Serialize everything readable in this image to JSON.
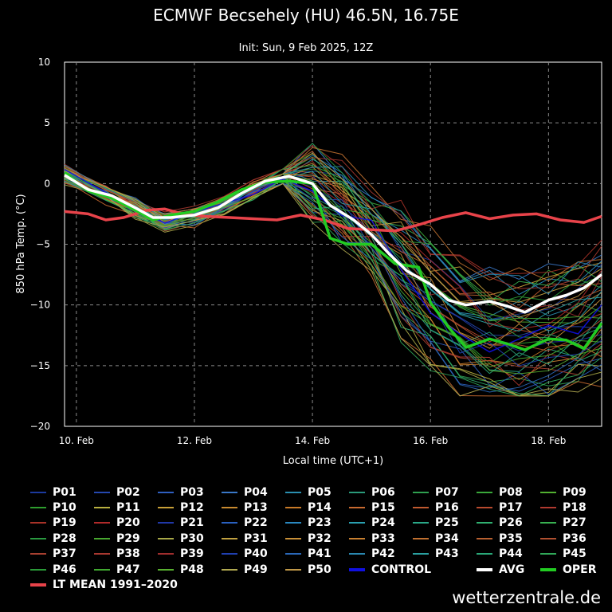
{
  "chart_data": {
    "type": "line",
    "title": "ECMWF Becsehely (HU) 46.5N, 16.75E",
    "subtitle": "Init: Sun, 9 Feb 2025, 12Z",
    "xlabel": "Local time (UTC+1)",
    "ylabel": "850 hPa Temp. (°C)",
    "xlim": [
      9.8,
      18.9
    ],
    "ylim": [
      -20,
      10
    ],
    "grid": true,
    "x_ticks": [
      10,
      12,
      14,
      16,
      18
    ],
    "x_tick_labels": [
      "10. Feb",
      "12. Feb",
      "14. Feb",
      "16. Feb",
      "18. Feb"
    ],
    "y_ticks": [
      -20,
      -15,
      -10,
      -5,
      0,
      5,
      10
    ],
    "y_tick_labels": [
      "−20",
      "−15",
      "−10",
      "−5",
      "0",
      "5",
      "10"
    ],
    "ensemble_x": [
      9.8,
      10.5,
      11.0,
      11.5,
      12.0,
      12.5,
      13.0,
      13.5,
      14.0,
      14.5,
      15.0,
      15.5,
      16.0,
      16.5,
      17.0,
      17.5,
      18.0,
      18.5,
      18.9
    ],
    "ensemble_base": [
      0.8,
      -0.8,
      -2.0,
      -3.2,
      -2.7,
      -1.8,
      -0.5,
      0.6,
      0.2,
      -1.5,
      -4.0,
      -7.0,
      -9.5,
      -11.5,
      -12.5,
      -12.8,
      -12.3,
      -11.5,
      -10.5
    ],
    "series": [
      {
        "name": "AVG",
        "color": "#ffffff",
        "x": [
          9.8,
          10.2,
          10.6,
          11.0,
          11.3,
          11.6,
          12.0,
          12.4,
          12.8,
          13.2,
          13.6,
          14.0,
          14.3,
          14.7,
          15.0,
          15.3,
          15.6,
          16.0,
          16.3,
          16.6,
          17.0,
          17.3,
          17.6,
          18.0,
          18.3,
          18.6,
          18.9
        ],
        "values": [
          0.7,
          -0.5,
          -1.0,
          -2.0,
          -2.8,
          -2.8,
          -2.6,
          -2.0,
          -0.8,
          0.2,
          0.6,
          0.0,
          -1.8,
          -3.0,
          -4.2,
          -5.8,
          -7.2,
          -8.3,
          -9.6,
          -10.0,
          -9.7,
          -10.1,
          -10.6,
          -9.6,
          -9.2,
          -8.6,
          -7.5
        ]
      },
      {
        "name": "OPER",
        "color": "#22cc22",
        "x": [
          9.8,
          10.2,
          10.6,
          11.0,
          11.3,
          11.6,
          12.0,
          12.4,
          12.8,
          13.2,
          13.6,
          14.0,
          14.3,
          14.6,
          15.0,
          15.4,
          15.8,
          16.0,
          16.3,
          16.6,
          17.0,
          17.3,
          17.6,
          18.0,
          18.3,
          18.6,
          18.9
        ],
        "values": [
          0.9,
          -0.6,
          -1.2,
          -2.2,
          -3.0,
          -2.6,
          -2.3,
          -1.5,
          -0.5,
          0.1,
          0.2,
          0.0,
          -4.5,
          -5.0,
          -5.0,
          -6.6,
          -6.9,
          -9.8,
          -11.8,
          -13.5,
          -12.8,
          -13.2,
          -13.7,
          -12.8,
          -12.9,
          -13.6,
          -11.5
        ]
      },
      {
        "name": "LT MEAN 1991-2020",
        "color": "#e8434a",
        "x": [
          9.8,
          10.2,
          10.5,
          10.8,
          11.2,
          11.5,
          11.8,
          12.2,
          12.6,
          13.0,
          13.4,
          13.8,
          14.2,
          14.6,
          15.0,
          15.4,
          15.8,
          16.2,
          16.6,
          17.0,
          17.4,
          17.8,
          18.2,
          18.6,
          18.9
        ],
        "values": [
          -2.3,
          -2.5,
          -3.0,
          -2.8,
          -2.2,
          -2.1,
          -2.5,
          -2.7,
          -2.8,
          -2.9,
          -3.0,
          -2.6,
          -3.0,
          -3.7,
          -3.8,
          -3.9,
          -3.4,
          -2.8,
          -2.4,
          -2.9,
          -2.6,
          -2.5,
          -3.0,
          -3.2,
          -2.7
        ]
      }
    ],
    "legend": [
      {
        "label": "P01",
        "color": "#1c3a9e"
      },
      {
        "label": "P02",
        "color": "#2548b0"
      },
      {
        "label": "P03",
        "color": "#2f5fc0"
      },
      {
        "label": "P04",
        "color": "#3a78c8"
      },
      {
        "label": "P05",
        "color": "#2a8fb0"
      },
      {
        "label": "P06",
        "color": "#2a9a7a"
      },
      {
        "label": "P07",
        "color": "#2fa050"
      },
      {
        "label": "P08",
        "color": "#3aa83a"
      },
      {
        "label": "P09",
        "color": "#52b030"
      },
      {
        "label": "P10",
        "color": "#2e9e2e"
      },
      {
        "label": "P11",
        "color": "#b8b040"
      },
      {
        "label": "P12",
        "color": "#c8a038"
      },
      {
        "label": "P13",
        "color": "#c88a30"
      },
      {
        "label": "P14",
        "color": "#c87a28"
      },
      {
        "label": "P15",
        "color": "#c86a30"
      },
      {
        "label": "P16",
        "color": "#c05a30"
      },
      {
        "label": "P17",
        "color": "#b84a2e"
      },
      {
        "label": "P18",
        "color": "#b03a30"
      },
      {
        "label": "P19",
        "color": "#a83228"
      },
      {
        "label": "P20",
        "color": "#b02a2a"
      },
      {
        "label": "P21",
        "color": "#2038a8"
      },
      {
        "label": "P22",
        "color": "#2a60c0"
      },
      {
        "label": "P23",
        "color": "#2a88c0"
      },
      {
        "label": "P24",
        "color": "#2aa0b0"
      },
      {
        "label": "P25",
        "color": "#2aa888"
      },
      {
        "label": "P26",
        "color": "#30b070"
      },
      {
        "label": "P27",
        "color": "#38b050"
      },
      {
        "label": "P28",
        "color": "#2a9a40"
      },
      {
        "label": "P29",
        "color": "#48a830"
      },
      {
        "label": "P30",
        "color": "#a8a848"
      },
      {
        "label": "P31",
        "color": "#c0a040"
      },
      {
        "label": "P32",
        "color": "#c89038"
      },
      {
        "label": "P33",
        "color": "#c88030"
      },
      {
        "label": "P34",
        "color": "#c07030"
      },
      {
        "label": "P35",
        "color": "#b86030"
      },
      {
        "label": "P36",
        "color": "#b05030"
      },
      {
        "label": "P37",
        "color": "#a84030"
      },
      {
        "label": "P38",
        "color": "#a83830"
      },
      {
        "label": "P39",
        "color": "#a02e2e"
      },
      {
        "label": "P40",
        "color": "#2040b0"
      },
      {
        "label": "P41",
        "color": "#2a68b8"
      },
      {
        "label": "P42",
        "color": "#2a88b0"
      },
      {
        "label": "P43",
        "color": "#2aa0a0"
      },
      {
        "label": "P44",
        "color": "#2aa878"
      },
      {
        "label": "P45",
        "color": "#30a858"
      },
      {
        "label": "P46",
        "color": "#2a9a38"
      },
      {
        "label": "P47",
        "color": "#40a830"
      },
      {
        "label": "P48",
        "color": "#58b030"
      },
      {
        "label": "P49",
        "color": "#b0a850"
      },
      {
        "label": "P50",
        "color": "#c09848"
      },
      {
        "label": "CONTROL",
        "color": "#1010e0"
      },
      {
        "label": "AVG",
        "color": "#ffffff"
      },
      {
        "label": "OPER",
        "color": "#22cc22"
      },
      {
        "label": "LT MEAN 1991–2020",
        "color": "#e8434a"
      }
    ]
  },
  "watermark": "wetterzentrale.de"
}
